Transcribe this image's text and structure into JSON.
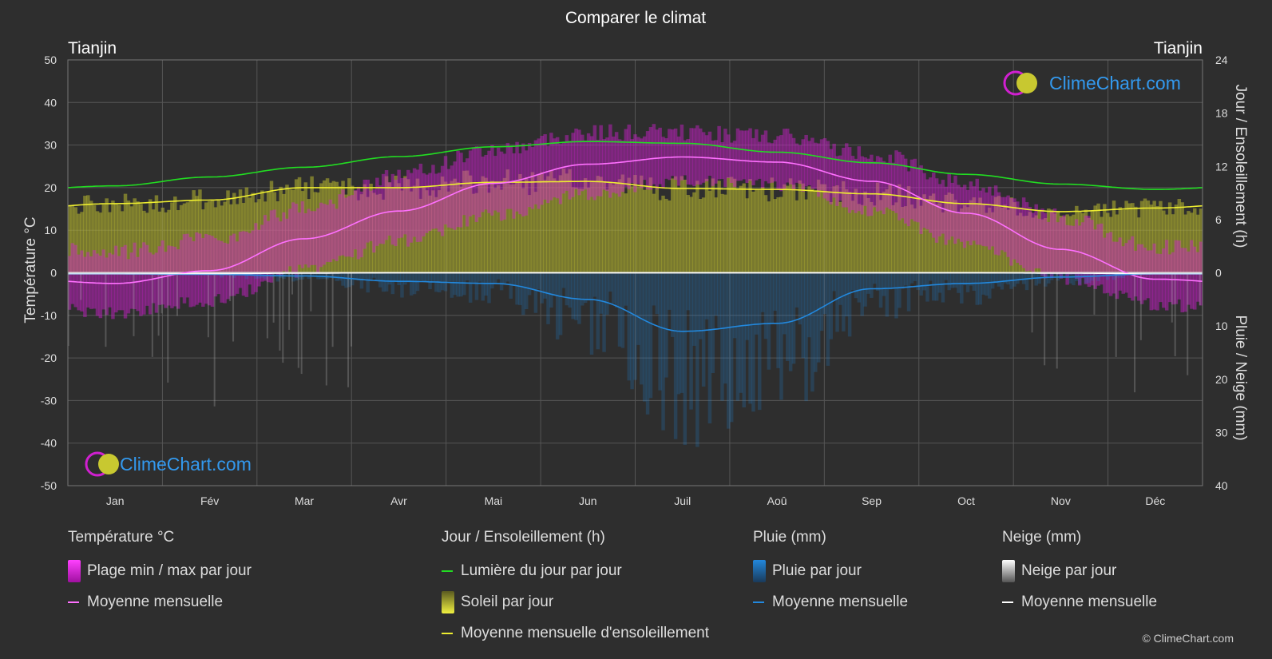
{
  "colors": {
    "background": "#2e2e2e",
    "grid": "#555555",
    "temp_range": "#d020d0",
    "temp_mean": "#ff70ff",
    "daylight": "#22dd22",
    "sunshine_fill": "#b8b830",
    "sunshine_mean": "#eeee30",
    "rain": "#2288dd",
    "rain_mean": "#2288dd",
    "snow": "#bbbbbb",
    "snow_mean": "#ffffff",
    "brand": "#3399ee"
  },
  "chart_data": {
    "type": "area",
    "title": "Comparer le climat",
    "location_left": "Tianjin",
    "location_right": "Tianjin",
    "y_left_label": "Température °C",
    "y_right_top_label": "Jour / Ensoleillement (h)",
    "y_right_bottom_label": "Pluie / Neige (mm)",
    "y_left_ticks": [
      "50",
      "40",
      "30",
      "20",
      "10",
      "0",
      "-10",
      "-20",
      "-30",
      "-40",
      "-50"
    ],
    "y_right_top_ticks": [
      "24",
      "18",
      "12",
      "6",
      "0"
    ],
    "y_right_bottom_ticks": [
      "10",
      "20",
      "30",
      "40"
    ],
    "y_left_range": [
      -50,
      50
    ],
    "sun_range_h": [
      0,
      24
    ],
    "precip_range_mm": [
      0,
      40
    ],
    "months": [
      "Jan",
      "Fév",
      "Mar",
      "Avr",
      "Mai",
      "Jun",
      "Juil",
      "Aoû",
      "Sep",
      "Oct",
      "Nov",
      "Déc"
    ],
    "temp_mean_monthly": [
      -2.5,
      0.5,
      8,
      14.5,
      21,
      25.5,
      27.2,
      26,
      21.5,
      14,
      5.5,
      -1.5
    ],
    "temp_min_monthly": [
      -8,
      -5,
      2,
      9,
      15,
      20,
      23,
      22,
      16,
      8,
      0,
      -6
    ],
    "temp_max_monthly": [
      3,
      6,
      13,
      21,
      27,
      31,
      31,
      30,
      26,
      19,
      11,
      4
    ],
    "daylight_monthly_h": [
      9.8,
      10.8,
      11.9,
      13.1,
      14.2,
      14.8,
      14.6,
      13.6,
      12.4,
      11.1,
      10.0,
      9.4
    ],
    "sunshine_mean_monthly_h": [
      7.8,
      8.2,
      9.6,
      9.6,
      10.2,
      10.3,
      9.5,
      9.4,
      8.9,
      7.8,
      6.9,
      7.3
    ],
    "rain_mean_monthly_mm": [
      0.2,
      0.3,
      0.6,
      1.6,
      2.0,
      5.0,
      11.0,
      9.5,
      3.0,
      2.0,
      0.8,
      0.2
    ],
    "snow_mean_monthly_mm": [
      0.2,
      0.2,
      0.1,
      0,
      0,
      0,
      0,
      0,
      0,
      0,
      0.1,
      0.2
    ]
  },
  "watermark": "ClimeChart.com",
  "legend": {
    "temp": {
      "title": "Température °C",
      "range_label": "Plage min / max par jour",
      "mean_label": "Moyenne mensuelle"
    },
    "sun": {
      "title": "Jour / Ensoleillement (h)",
      "daylight_label": "Lumière du jour par jour",
      "sunshine_label": "Soleil par jour",
      "mean_label": "Moyenne mensuelle d'ensoleillement"
    },
    "rain": {
      "title": "Pluie (mm)",
      "daily_label": "Pluie par jour",
      "mean_label": "Moyenne mensuelle"
    },
    "snow": {
      "title": "Neige (mm)",
      "daily_label": "Neige par jour",
      "mean_label": "Moyenne mensuelle"
    }
  },
  "copyright": "© ClimeChart.com"
}
